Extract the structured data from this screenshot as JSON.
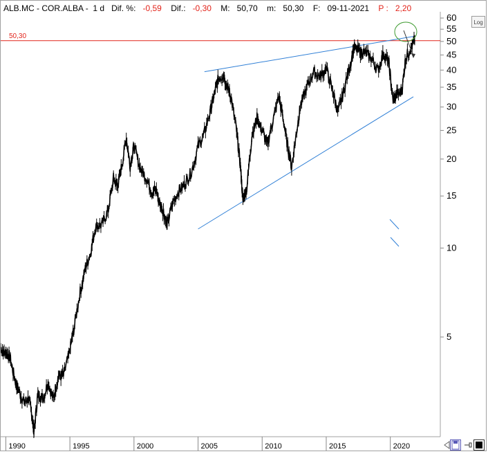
{
  "header": {
    "symbol": "ALB.MC - COR.ALBA - ",
    "period": "1 d",
    "dif_pct_label": "Dif. %:",
    "dif_pct_value": "-0,59",
    "dif_label": "Dif.:",
    "dif_value": "-0,30",
    "max_label": "M:",
    "max_value": "50,70",
    "min_label": "m:",
    "min_value": "50,30",
    "date_label": "F:",
    "date_value": "09-11-2021",
    "price_label": "P :",
    "price_value": "2,20"
  },
  "toolbar": {
    "log_label": "Log"
  },
  "colors": {
    "price": "#000000",
    "hline": "#e2231a",
    "trendline": "#2f7fd6",
    "ellipse": "#3c9a2e",
    "arrow": "#333333",
    "neg": "#e2231a"
  },
  "chart_data": {
    "type": "line",
    "title": "",
    "xlabel": "",
    "ylabel": "",
    "yscale": "log",
    "x_ticks": [
      "1990",
      "1995",
      "2000",
      "2005",
      "2010",
      "2015",
      "2020"
    ],
    "y_ticks": [
      "5",
      "10",
      "15",
      "20",
      "25",
      "30",
      "35",
      "40",
      "45",
      "50",
      "55",
      "60"
    ],
    "ylim": [
      2.3,
      63
    ],
    "xlim": [
      1989.6,
      2023.9
    ],
    "grid": false,
    "series": [
      {
        "values": [
          [
            1989.6,
            4.6
          ],
          [
            1990.0,
            4.4
          ],
          [
            1990.3,
            4.3
          ],
          [
            1990.7,
            3.6
          ],
          [
            1991.0,
            3.3
          ],
          [
            1991.4,
            3.0
          ],
          [
            1991.8,
            3.1
          ],
          [
            1992.1,
            2.6
          ],
          [
            1992.2,
            2.4
          ],
          [
            1992.5,
            3.2
          ],
          [
            1992.9,
            3.1
          ],
          [
            1993.3,
            3.5
          ],
          [
            1993.7,
            3.1
          ],
          [
            1994.1,
            3.7
          ],
          [
            1994.5,
            3.7
          ],
          [
            1995.0,
            4.5
          ],
          [
            1995.3,
            5.3
          ],
          [
            1995.8,
            7.1
          ],
          [
            1996.2,
            8.5
          ],
          [
            1996.6,
            9.6
          ],
          [
            1997.0,
            11.8
          ],
          [
            1997.5,
            12.0
          ],
          [
            1998.0,
            13.5
          ],
          [
            1998.4,
            17.2
          ],
          [
            1998.7,
            16.2
          ],
          [
            1999.0,
            18.5
          ],
          [
            1999.4,
            23.5
          ],
          [
            1999.7,
            19.0
          ],
          [
            2000.0,
            22.2
          ],
          [
            2000.5,
            18.5
          ],
          [
            2001.0,
            17.2
          ],
          [
            2001.4,
            15.5
          ],
          [
            2001.7,
            15.8
          ],
          [
            2002.0,
            14.2
          ],
          [
            2002.3,
            13.3
          ],
          [
            2002.6,
            11.9
          ],
          [
            2003.0,
            14.2
          ],
          [
            2003.5,
            15.6
          ],
          [
            2004.0,
            16.5
          ],
          [
            2004.5,
            18.2
          ],
          [
            2005.0,
            22.0
          ],
          [
            2005.5,
            24.5
          ],
          [
            2006.0,
            29.5
          ],
          [
            2006.3,
            33.5
          ],
          [
            2006.6,
            37.5
          ],
          [
            2007.0,
            38.5
          ],
          [
            2007.3,
            35.0
          ],
          [
            2007.6,
            32.0
          ],
          [
            2008.0,
            25.0
          ],
          [
            2008.3,
            19.0
          ],
          [
            2008.5,
            14.5
          ],
          [
            2008.8,
            16.0
          ],
          [
            2009.2,
            24.0
          ],
          [
            2009.6,
            27.5
          ],
          [
            2010.0,
            25.0
          ],
          [
            2010.4,
            22.5
          ],
          [
            2010.8,
            26.5
          ],
          [
            2011.3,
            32.5
          ],
          [
            2011.6,
            28.0
          ],
          [
            2012.0,
            22.0
          ],
          [
            2012.3,
            18.8
          ],
          [
            2012.7,
            25.0
          ],
          [
            2013.0,
            30.5
          ],
          [
            2013.5,
            35.0
          ],
          [
            2014.0,
            39.5
          ],
          [
            2014.5,
            38.0
          ],
          [
            2015.0,
            40.5
          ],
          [
            2015.5,
            34.0
          ],
          [
            2015.9,
            29.0
          ],
          [
            2016.3,
            33.0
          ],
          [
            2016.8,
            41.0
          ],
          [
            2017.2,
            47.5
          ],
          [
            2017.6,
            46.0
          ],
          [
            2018.0,
            46.0
          ],
          [
            2018.5,
            44.0
          ],
          [
            2019.0,
            40.0
          ],
          [
            2019.5,
            45.5
          ],
          [
            2019.9,
            42.0
          ],
          [
            2020.2,
            31.5
          ],
          [
            2020.5,
            33.0
          ],
          [
            2020.9,
            34.0
          ],
          [
            2021.2,
            44.0
          ],
          [
            2021.6,
            47.5
          ],
          [
            2021.9,
            50.5
          ]
        ]
      }
    ],
    "annotations": {
      "hline_value": 50.3,
      "hline_label": "50,30",
      "upper_trendline": [
        [
          2005.5,
          39.5
        ],
        [
          2021.8,
          52.0
        ]
      ],
      "lower_trendline": [
        [
          2005.0,
          11.6
        ],
        [
          2021.8,
          32.5
        ]
      ]
    }
  }
}
